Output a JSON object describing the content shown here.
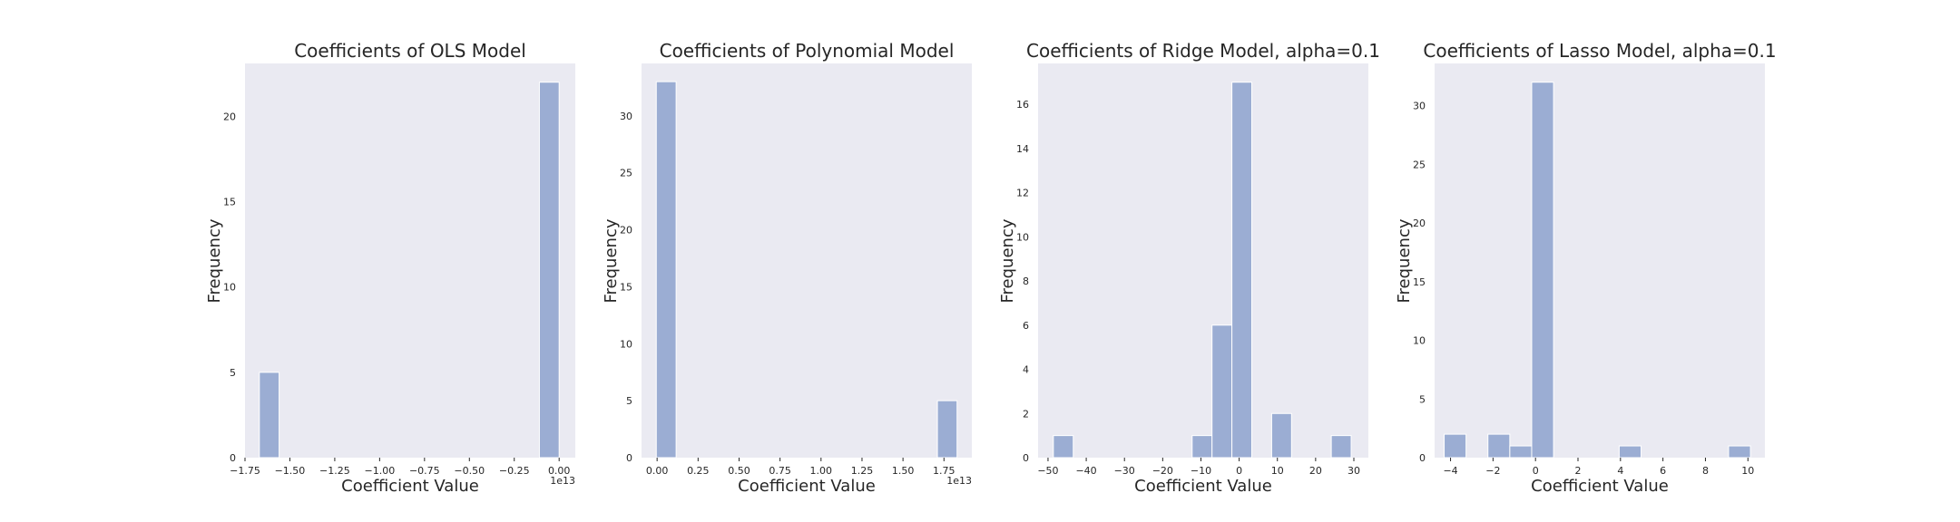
{
  "colors": {
    "axes_bg": "#eaeaf2",
    "bar": "#9badd3",
    "bar_edge": "#ffffff",
    "text": "#262626"
  },
  "chart_data": [
    {
      "type": "bar",
      "title": "Coefficients of OLS Model",
      "xlabel": "Coefficient Value",
      "ylabel": "Frequency",
      "x_offset_label": "1e13",
      "xlim": [
        -1.75,
        0.09
      ],
      "ylim": [
        0,
        23.1
      ],
      "xticks": [
        -1.75,
        -1.5,
        -1.25,
        -1.0,
        -0.75,
        -0.5,
        -0.25,
        0.0
      ],
      "xtick_labels": [
        "−1.75",
        "−1.50",
        "−1.25",
        "−1.00",
        "−0.75",
        "−0.50",
        "−0.25",
        "0.00"
      ],
      "yticks": [
        0,
        5,
        10,
        15,
        20
      ],
      "ytick_labels": [
        "0",
        "5",
        "10",
        "15",
        "20"
      ],
      "bins": [
        [
          -1.67,
          -1.56,
          5
        ],
        [
          -0.11,
          0.0,
          22
        ]
      ]
    },
    {
      "type": "bar",
      "title": "Coefficients of Polynomial Model",
      "xlabel": "Coefficient Value",
      "ylabel": "Frequency",
      "x_offset_label": "1e13",
      "xlim": [
        -0.095,
        1.92
      ],
      "ylim": [
        0,
        34.6
      ],
      "xticks": [
        0.0,
        0.25,
        0.5,
        0.75,
        1.0,
        1.25,
        1.5,
        1.75
      ],
      "xtick_labels": [
        "0.00",
        "0.25",
        "0.50",
        "0.75",
        "1.00",
        "1.25",
        "1.50",
        "1.75"
      ],
      "yticks": [
        0,
        5,
        10,
        15,
        20,
        25,
        30
      ],
      "ytick_labels": [
        "0",
        "5",
        "10",
        "15",
        "20",
        "25",
        "30"
      ],
      "bins": [
        [
          -0.005,
          0.116,
          33
        ],
        [
          1.71,
          1.83,
          5
        ]
      ]
    },
    {
      "type": "bar",
      "title": "Coefficients of Ridge Model, alpha=0.1",
      "xlabel": "Coefficient Value",
      "ylabel": "Frequency",
      "x_offset_label": "",
      "xlim": [
        -52.6,
        33.8
      ],
      "ylim": [
        0,
        17.85
      ],
      "xticks": [
        -50,
        -40,
        -30,
        -20,
        -10,
        0,
        10,
        20,
        30
      ],
      "xtick_labels": [
        "−50",
        "−40",
        "−30",
        "−20",
        "−10",
        "0",
        "10",
        "20",
        "30"
      ],
      "yticks": [
        0,
        2,
        4,
        6,
        8,
        10,
        12,
        14,
        16
      ],
      "ytick_labels": [
        "0",
        "2",
        "4",
        "6",
        "8",
        "10",
        "12",
        "14",
        "16"
      ],
      "bins": [
        [
          -48.6,
          -43.4,
          1
        ],
        [
          -12.3,
          -7.1,
          1
        ],
        [
          -7.1,
          -1.9,
          6
        ],
        [
          -1.9,
          3.3,
          17
        ],
        [
          8.5,
          13.7,
          2
        ],
        [
          24.1,
          29.3,
          1
        ]
      ]
    },
    {
      "type": "bar",
      "title": "Coefficients of Lasso Model, alpha=0.1",
      "xlabel": "Coefficient Value",
      "ylabel": "Frequency",
      "x_offset_label": "",
      "xlim": [
        -4.75,
        10.8
      ],
      "ylim": [
        0,
        33.6
      ],
      "xticks": [
        -4,
        -2,
        0,
        2,
        4,
        6,
        8,
        10
      ],
      "xtick_labels": [
        "−4",
        "−2",
        "0",
        "2",
        "4",
        "6",
        "8",
        "10"
      ],
      "yticks": [
        0,
        5,
        10,
        15,
        20,
        25,
        30
      ],
      "ytick_labels": [
        "0",
        "5",
        "10",
        "15",
        "20",
        "25",
        "30"
      ],
      "bins": [
        [
          -4.3,
          -3.27,
          2
        ],
        [
          -2.24,
          -1.21,
          2
        ],
        [
          -1.21,
          -0.18,
          1
        ],
        [
          -0.18,
          0.85,
          32
        ],
        [
          3.94,
          4.97,
          1
        ],
        [
          9.09,
          10.12,
          1
        ]
      ]
    }
  ]
}
